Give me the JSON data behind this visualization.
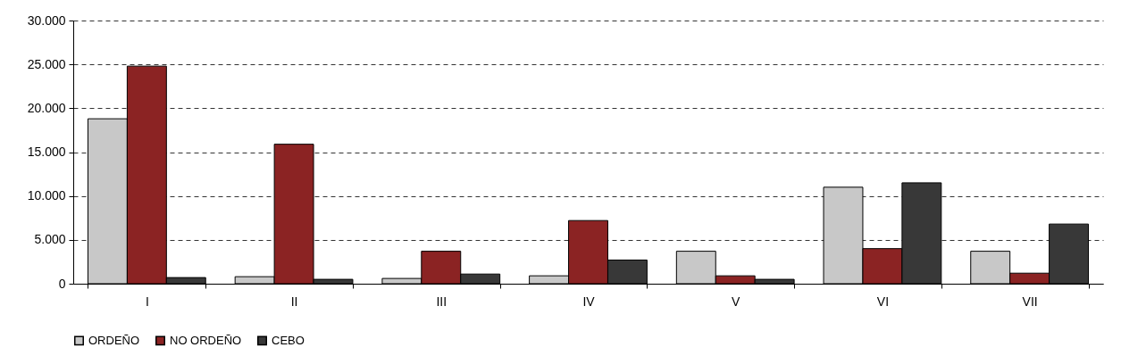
{
  "chart_data": {
    "type": "bar",
    "categories": [
      "I",
      "II",
      "III",
      "IV",
      "V",
      "VI",
      "VII"
    ],
    "series": [
      {
        "name": "ORDEÑO",
        "color": "#c8c8c8",
        "values": [
          18800,
          800,
          600,
          900,
          3700,
          11000,
          3700
        ]
      },
      {
        "name": "NO ORDEÑO",
        "color": "#8b2323",
        "values": [
          24800,
          15900,
          3700,
          7200,
          900,
          4000,
          1200
        ]
      },
      {
        "name": "CEBO",
        "color": "#383838",
        "values": [
          700,
          500,
          1100,
          2700,
          500,
          11500,
          6800
        ]
      }
    ],
    "ylim": [
      0,
      30000
    ],
    "yticks": [
      0,
      {
        "value": 5000,
        "label": "5.000"
      },
      {
        "value": 10000,
        "label": "10.000"
      },
      {
        "value": 15000,
        "label": "15.000"
      },
      {
        "value": 20000,
        "label": "20.000"
      },
      {
        "value": 25000,
        "label": "25.000"
      },
      {
        "value": 30000,
        "label": "30.000"
      }
    ],
    "grid": "y",
    "legend": "bottom"
  }
}
